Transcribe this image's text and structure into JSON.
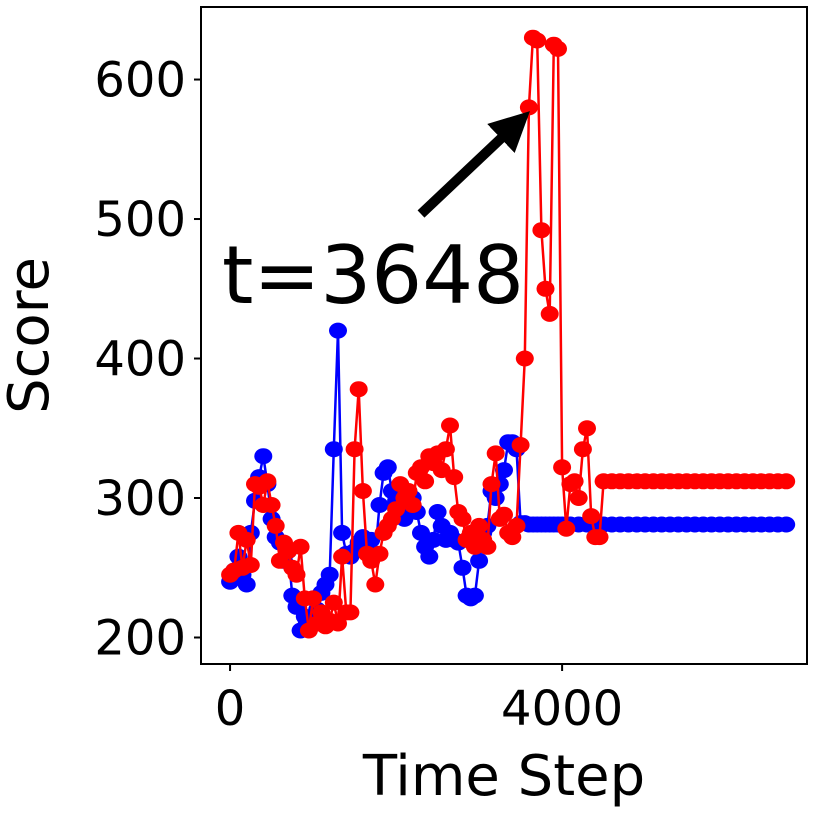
{
  "chart_data": {
    "type": "line",
    "title": "",
    "xlabel": "Time Step",
    "ylabel": "Score",
    "xlim": [
      -350,
      6950
    ],
    "ylim": [
      181,
      652
    ],
    "xticks": [
      0,
      4000
    ],
    "yticks": [
      200,
      300,
      400,
      500,
      600
    ],
    "grid": false,
    "series": [
      {
        "color": "#0000ff",
        "points": [
          [
            0,
            240
          ],
          [
            50,
            248
          ],
          [
            100,
            258
          ],
          [
            150,
            245
          ],
          [
            200,
            238
          ],
          [
            250,
            275
          ],
          [
            300,
            298
          ],
          [
            350,
            315
          ],
          [
            400,
            330
          ],
          [
            450,
            310
          ],
          [
            500,
            285
          ],
          [
            550,
            272
          ],
          [
            600,
            268
          ],
          [
            650,
            255
          ],
          [
            700,
            262
          ],
          [
            750,
            230
          ],
          [
            800,
            222
          ],
          [
            850,
            205
          ],
          [
            900,
            215
          ],
          [
            950,
            210
          ],
          [
            1000,
            228
          ],
          [
            1050,
            220
          ],
          [
            1100,
            232
          ],
          [
            1150,
            238
          ],
          [
            1200,
            245
          ],
          [
            1250,
            335
          ],
          [
            1300,
            420
          ],
          [
            1350,
            275
          ],
          [
            1400,
            260
          ],
          [
            1450,
            258
          ],
          [
            1500,
            262
          ],
          [
            1550,
            268
          ],
          [
            1600,
            272
          ],
          [
            1650,
            265
          ],
          [
            1700,
            270
          ],
          [
            1750,
            260
          ],
          [
            1800,
            295
          ],
          [
            1850,
            318
          ],
          [
            1900,
            322
          ],
          [
            1950,
            305
          ],
          [
            2000,
            298
          ],
          [
            2050,
            290
          ],
          [
            2100,
            285
          ],
          [
            2150,
            295
          ],
          [
            2200,
            300
          ],
          [
            2250,
            290
          ],
          [
            2300,
            275
          ],
          [
            2350,
            265
          ],
          [
            2400,
            258
          ],
          [
            2450,
            270
          ],
          [
            2500,
            290
          ],
          [
            2550,
            280
          ],
          [
            2600,
            270
          ],
          [
            2650,
            275
          ],
          [
            2700,
            270
          ],
          [
            2750,
            268
          ],
          [
            2800,
            250
          ],
          [
            2850,
            230
          ],
          [
            2900,
            228
          ],
          [
            2950,
            230
          ],
          [
            3000,
            255
          ],
          [
            3050,
            275
          ],
          [
            3100,
            280
          ],
          [
            3150,
            305
          ],
          [
            3200,
            300
          ],
          [
            3250,
            310
          ],
          [
            3300,
            320
          ],
          [
            3350,
            340
          ],
          [
            3400,
            340
          ],
          [
            3450,
            335
          ],
          [
            3500,
            282
          ],
          [
            3550,
            282
          ],
          [
            3600,
            281
          ],
          [
            3650,
            281
          ],
          [
            3700,
            281
          ],
          [
            3750,
            281
          ],
          [
            3800,
            281
          ],
          [
            3850,
            281
          ],
          [
            3900,
            281
          ],
          [
            3950,
            281
          ],
          [
            4000,
            281
          ],
          [
            4100,
            281
          ],
          [
            4200,
            281
          ],
          [
            4300,
            281
          ],
          [
            4400,
            281
          ],
          [
            4500,
            281
          ],
          [
            4600,
            281
          ],
          [
            4700,
            281
          ],
          [
            4800,
            281
          ],
          [
            4900,
            281
          ],
          [
            5000,
            281
          ],
          [
            5100,
            281
          ],
          [
            5200,
            281
          ],
          [
            5300,
            281
          ],
          [
            5400,
            281
          ],
          [
            5500,
            281
          ],
          [
            5600,
            281
          ],
          [
            5700,
            281
          ],
          [
            5800,
            281
          ],
          [
            5900,
            281
          ],
          [
            6000,
            281
          ],
          [
            6100,
            281
          ],
          [
            6200,
            281
          ],
          [
            6300,
            281
          ],
          [
            6400,
            281
          ],
          [
            6500,
            281
          ],
          [
            6600,
            281
          ],
          [
            6700,
            281
          ]
        ]
      },
      {
        "color": "#ff0000",
        "points": [
          [
            0,
            245
          ],
          [
            50,
            248
          ],
          [
            100,
            275
          ],
          [
            150,
            250
          ],
          [
            200,
            270
          ],
          [
            250,
            252
          ],
          [
            300,
            310
          ],
          [
            350,
            308
          ],
          [
            400,
            295
          ],
          [
            450,
            312
          ],
          [
            500,
            295
          ],
          [
            550,
            280
          ],
          [
            600,
            255
          ],
          [
            650,
            268
          ],
          [
            700,
            262
          ],
          [
            750,
            250
          ],
          [
            800,
            245
          ],
          [
            850,
            265
          ],
          [
            900,
            228
          ],
          [
            950,
            205
          ],
          [
            1000,
            228
          ],
          [
            1050,
            210
          ],
          [
            1100,
            218
          ],
          [
            1150,
            208
          ],
          [
            1200,
            212
          ],
          [
            1250,
            225
          ],
          [
            1300,
            210
          ],
          [
            1350,
            258
          ],
          [
            1400,
            218
          ],
          [
            1450,
            218
          ],
          [
            1500,
            335
          ],
          [
            1550,
            378
          ],
          [
            1600,
            305
          ],
          [
            1650,
            260
          ],
          [
            1700,
            255
          ],
          [
            1750,
            238
          ],
          [
            1800,
            260
          ],
          [
            1850,
            275
          ],
          [
            1900,
            280
          ],
          [
            1950,
            285
          ],
          [
            2000,
            292
          ],
          [
            2050,
            310
          ],
          [
            2100,
            300
          ],
          [
            2150,
            305
          ],
          [
            2200,
            295
          ],
          [
            2250,
            318
          ],
          [
            2300,
            322
          ],
          [
            2350,
            312
          ],
          [
            2400,
            330
          ],
          [
            2450,
            325
          ],
          [
            2500,
            332
          ],
          [
            2550,
            320
          ],
          [
            2600,
            335
          ],
          [
            2650,
            352
          ],
          [
            2700,
            315
          ],
          [
            2750,
            290
          ],
          [
            2800,
            285
          ],
          [
            2850,
            270
          ],
          [
            2900,
            275
          ],
          [
            2950,
            265
          ],
          [
            3000,
            280
          ],
          [
            3050,
            270
          ],
          [
            3100,
            265
          ],
          [
            3150,
            310
          ],
          [
            3200,
            332
          ],
          [
            3250,
            285
          ],
          [
            3300,
            288
          ],
          [
            3350,
            275
          ],
          [
            3400,
            272
          ],
          [
            3450,
            280
          ],
          [
            3500,
            338
          ],
          [
            3550,
            400
          ],
          [
            3600,
            580
          ],
          [
            3648,
            630
          ],
          [
            3700,
            628
          ],
          [
            3750,
            492
          ],
          [
            3800,
            450
          ],
          [
            3850,
            432
          ],
          [
            3900,
            625
          ],
          [
            3950,
            622
          ],
          [
            4000,
            322
          ],
          [
            4050,
            278
          ],
          [
            4100,
            310
          ],
          [
            4150,
            312
          ],
          [
            4200,
            300
          ],
          [
            4250,
            335
          ],
          [
            4300,
            350
          ],
          [
            4350,
            287
          ],
          [
            4400,
            272
          ],
          [
            4450,
            272
          ],
          [
            4500,
            312
          ],
          [
            4600,
            312
          ],
          [
            4700,
            312
          ],
          [
            4800,
            312
          ],
          [
            4900,
            312
          ],
          [
            5000,
            312
          ],
          [
            5100,
            312
          ],
          [
            5200,
            312
          ],
          [
            5300,
            312
          ],
          [
            5400,
            312
          ],
          [
            5500,
            312
          ],
          [
            5600,
            312
          ],
          [
            5700,
            312
          ],
          [
            5800,
            312
          ],
          [
            5900,
            312
          ],
          [
            6000,
            312
          ],
          [
            6100,
            312
          ],
          [
            6200,
            312
          ],
          [
            6300,
            312
          ],
          [
            6400,
            312
          ],
          [
            6500,
            312
          ],
          [
            6600,
            312
          ],
          [
            6700,
            312
          ]
        ]
      }
    ],
    "annotation": {
      "text": "t=3648",
      "arrow_to": [
        3648,
        580
      ]
    }
  }
}
